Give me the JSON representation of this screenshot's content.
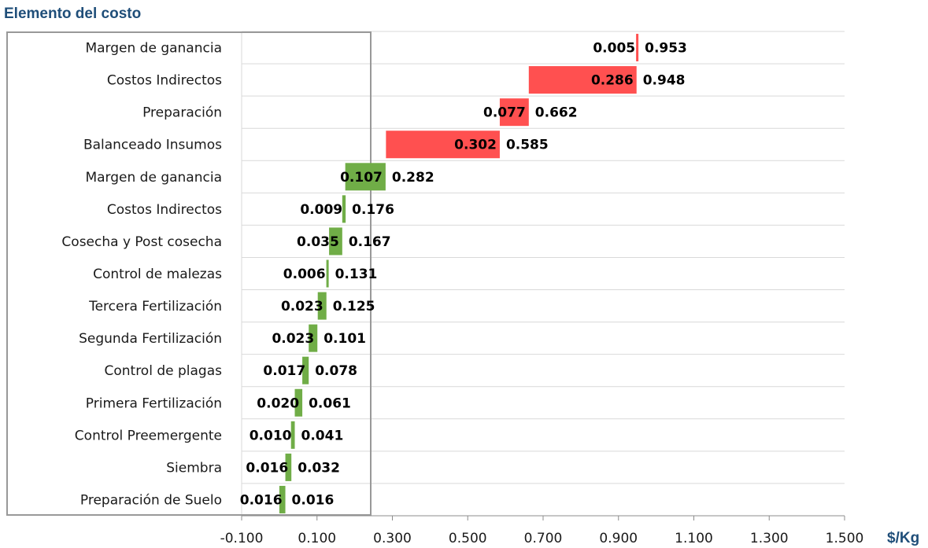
{
  "chart_data": {
    "type": "bar",
    "title": "Elemento del costo",
    "xlabel": "$/Kg",
    "xlim": [
      -0.1,
      1.5
    ],
    "xticks": [
      "-0.100",
      "0.100",
      "0.300",
      "0.500",
      "0.700",
      "0.900",
      "1.100",
      "1.300",
      "1.500"
    ],
    "colors": {
      "green": "#70ad47",
      "red": "#ff5050"
    },
    "categories": [
      "Margen de ganancia",
      "Costos Indirectos",
      "Preparación",
      "Balanceado Insumos",
      "Margen de ganancia",
      "Costos Indirectos",
      "Cosecha y Post cosecha",
      "Control de malezas",
      "Tercera Fertilización",
      "Segunda Fertilización",
      "Control de plagas",
      "Primera Fertilización",
      "Control Preemergente",
      "Siembra",
      "Preparación de Suelo"
    ],
    "series": [
      {
        "values": [
          0.005,
          0.286,
          0.077,
          0.302,
          0.107,
          0.009,
          0.035,
          0.006,
          0.023,
          0.023,
          0.017,
          0.02,
          0.01,
          0.016,
          0.016
        ],
        "labels": [
          "0.005",
          "0.286",
          "0.077",
          "0.302",
          "0.107",
          "0.009",
          "0.035",
          "0.006",
          "0.023",
          "0.023",
          "0.017",
          "0.020",
          "0.010",
          "0.016",
          "0.016"
        ]
      },
      {
        "values": [
          0.953,
          0.948,
          0.662,
          0.585,
          0.282,
          0.176,
          0.167,
          0.131,
          0.125,
          0.101,
          0.078,
          0.061,
          0.041,
          0.032,
          0.016
        ],
        "labels": [
          "0.953",
          "0.948",
          "0.662",
          "0.585",
          "0.282",
          "0.176",
          "0.167",
          "0.131",
          "0.125",
          "0.101",
          "0.078",
          "0.061",
          "0.041",
          "0.032",
          "0.016"
        ]
      }
    ],
    "bar_colors": [
      "red",
      "red",
      "red",
      "red",
      "green",
      "green",
      "green",
      "green",
      "green",
      "green",
      "green",
      "green",
      "green",
      "green",
      "green"
    ],
    "grid": true,
    "legend": "none"
  }
}
